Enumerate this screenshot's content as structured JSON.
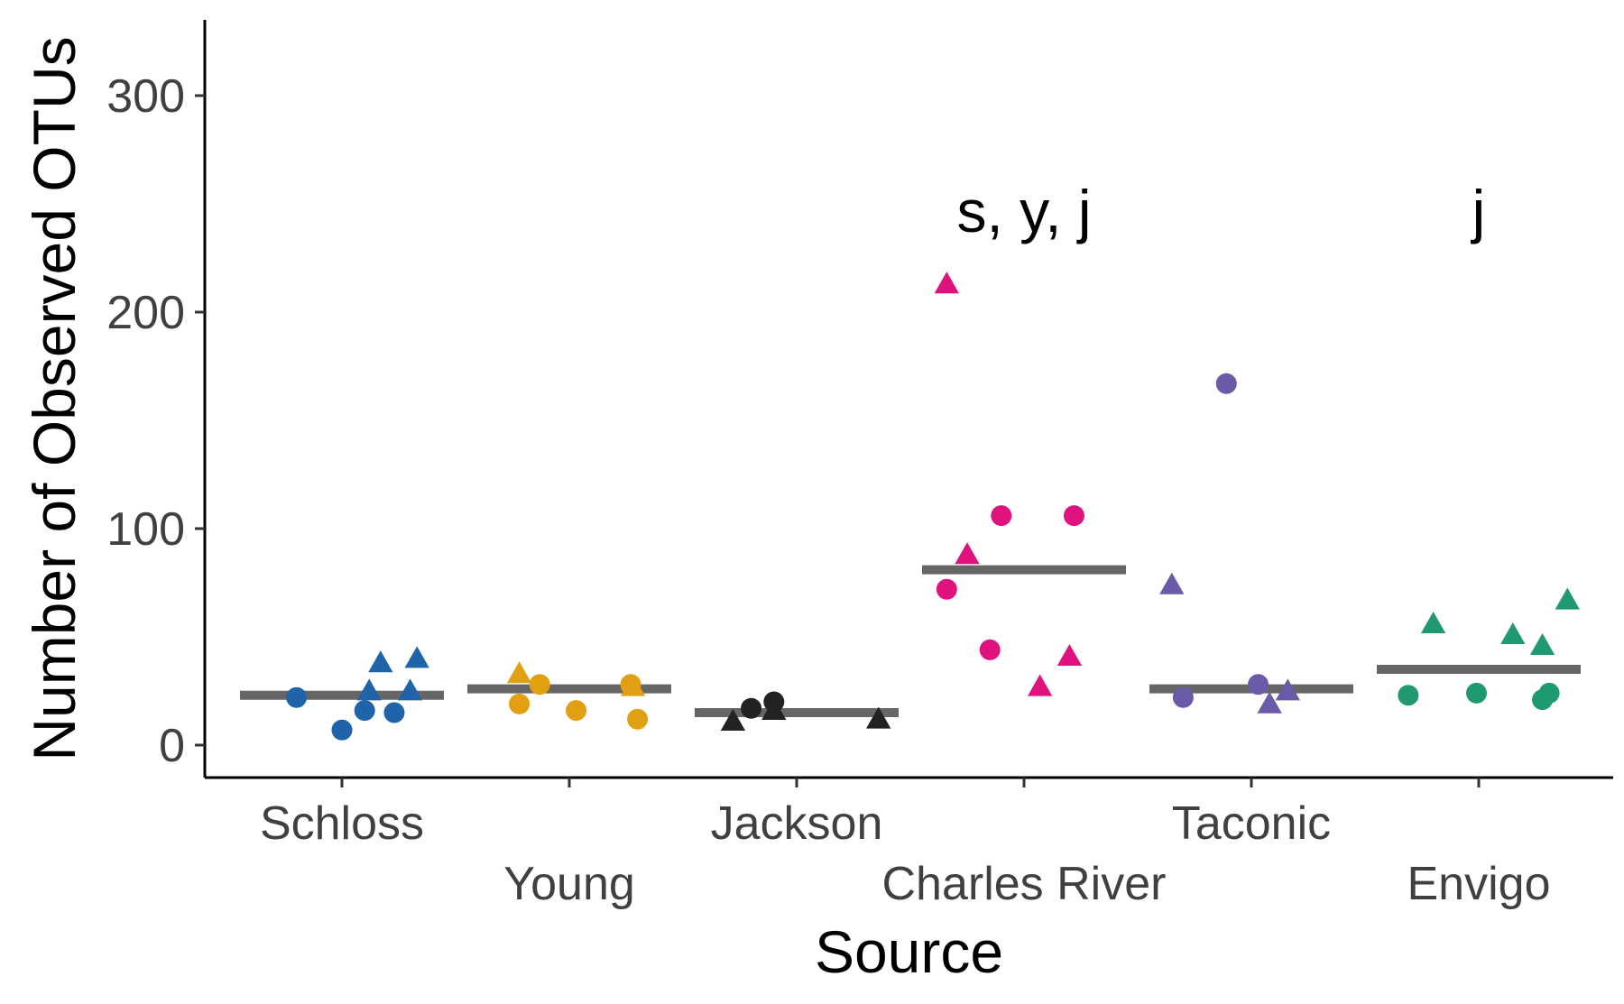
{
  "chart_data": {
    "type": "scatter",
    "xlabel": "Source",
    "ylabel": "Number of Observed OTUs",
    "ylim": [
      -15,
      335
    ],
    "yticks": [
      0,
      100,
      200,
      300
    ],
    "categories": [
      "Schloss",
      "Young",
      "Jackson",
      "Charles River",
      "Taconic",
      "Envigo"
    ],
    "colors": {
      "Schloss": "#1f63a8",
      "Young": "#e0a012",
      "Jackson": "#222222",
      "Charles River": "#e0127e",
      "Taconic": "#6a5aa8",
      "Envigo": "#1f9a6e"
    },
    "median_color": "#666666",
    "legend": "none",
    "grid": false,
    "points": [
      {
        "source": "Schloss",
        "jitter": -0.2,
        "value": 22,
        "shape": "circle"
      },
      {
        "source": "Schloss",
        "jitter": 0.0,
        "value": 7,
        "shape": "circle"
      },
      {
        "source": "Schloss",
        "jitter": 0.1,
        "value": 16,
        "shape": "circle"
      },
      {
        "source": "Schloss",
        "jitter": 0.23,
        "value": 15,
        "shape": "circle"
      },
      {
        "source": "Schloss",
        "jitter": 0.12,
        "value": 25,
        "shape": "triangle"
      },
      {
        "source": "Schloss",
        "jitter": 0.17,
        "value": 38,
        "shape": "triangle"
      },
      {
        "source": "Schloss",
        "jitter": 0.3,
        "value": 25,
        "shape": "triangle"
      },
      {
        "source": "Schloss",
        "jitter": 0.33,
        "value": 40,
        "shape": "triangle"
      },
      {
        "source": "Young",
        "jitter": -0.22,
        "value": 19,
        "shape": "circle"
      },
      {
        "source": "Young",
        "jitter": -0.13,
        "value": 28,
        "shape": "circle"
      },
      {
        "source": "Young",
        "jitter": 0.03,
        "value": 16,
        "shape": "circle"
      },
      {
        "source": "Young",
        "jitter": 0.27,
        "value": 28,
        "shape": "circle"
      },
      {
        "source": "Young",
        "jitter": 0.3,
        "value": 12,
        "shape": "circle"
      },
      {
        "source": "Young",
        "jitter": -0.22,
        "value": 33,
        "shape": "triangle"
      },
      {
        "source": "Young",
        "jitter": 0.28,
        "value": 27,
        "shape": "triangle"
      },
      {
        "source": "Jackson",
        "jitter": -0.2,
        "value": 17,
        "shape": "circle"
      },
      {
        "source": "Jackson",
        "jitter": -0.1,
        "value": 20,
        "shape": "circle"
      },
      {
        "source": "Jackson",
        "jitter": -0.28,
        "value": 11,
        "shape": "triangle"
      },
      {
        "source": "Jackson",
        "jitter": -0.1,
        "value": 16,
        "shape": "triangle"
      },
      {
        "source": "Jackson",
        "jitter": 0.36,
        "value": 12,
        "shape": "triangle"
      },
      {
        "source": "Charles River",
        "jitter": -0.34,
        "value": 72,
        "shape": "circle"
      },
      {
        "source": "Charles River",
        "jitter": -0.15,
        "value": 44,
        "shape": "circle"
      },
      {
        "source": "Charles River",
        "jitter": -0.1,
        "value": 106,
        "shape": "circle"
      },
      {
        "source": "Charles River",
        "jitter": 0.22,
        "value": 106,
        "shape": "circle"
      },
      {
        "source": "Charles River",
        "jitter": -0.34,
        "value": 213,
        "shape": "triangle"
      },
      {
        "source": "Charles River",
        "jitter": -0.25,
        "value": 88,
        "shape": "triangle"
      },
      {
        "source": "Charles River",
        "jitter": 0.07,
        "value": 27,
        "shape": "triangle"
      },
      {
        "source": "Charles River",
        "jitter": 0.2,
        "value": 41,
        "shape": "triangle"
      },
      {
        "source": "Taconic",
        "jitter": -0.3,
        "value": 22,
        "shape": "circle"
      },
      {
        "source": "Taconic",
        "jitter": -0.11,
        "value": 167,
        "shape": "circle"
      },
      {
        "source": "Taconic",
        "jitter": 0.03,
        "value": 28,
        "shape": "circle"
      },
      {
        "source": "Taconic",
        "jitter": -0.35,
        "value": 74,
        "shape": "triangle"
      },
      {
        "source": "Taconic",
        "jitter": 0.08,
        "value": 19,
        "shape": "triangle"
      },
      {
        "source": "Taconic",
        "jitter": 0.16,
        "value": 25,
        "shape": "triangle"
      },
      {
        "source": "Envigo",
        "jitter": -0.31,
        "value": 23,
        "shape": "circle"
      },
      {
        "source": "Envigo",
        "jitter": -0.01,
        "value": 24,
        "shape": "circle"
      },
      {
        "source": "Envigo",
        "jitter": 0.28,
        "value": 21,
        "shape": "circle"
      },
      {
        "source": "Envigo",
        "jitter": 0.31,
        "value": 24,
        "shape": "circle"
      },
      {
        "source": "Envigo",
        "jitter": -0.2,
        "value": 56,
        "shape": "triangle"
      },
      {
        "source": "Envigo",
        "jitter": 0.15,
        "value": 51,
        "shape": "triangle"
      },
      {
        "source": "Envigo",
        "jitter": 0.28,
        "value": 46,
        "shape": "triangle"
      },
      {
        "source": "Envigo",
        "jitter": 0.39,
        "value": 67,
        "shape": "triangle"
      }
    ],
    "medians": [
      {
        "source": "Schloss",
        "value": 23
      },
      {
        "source": "Young",
        "value": 26
      },
      {
        "source": "Jackson",
        "value": 15
      },
      {
        "source": "Charles River",
        "value": 81
      },
      {
        "source": "Taconic",
        "value": 26
      },
      {
        "source": "Envigo",
        "value": 35
      }
    ],
    "annotations": [
      {
        "source": "Charles River",
        "text": "s, y, j"
      },
      {
        "source": "Envigo",
        "text": "j"
      }
    ]
  }
}
